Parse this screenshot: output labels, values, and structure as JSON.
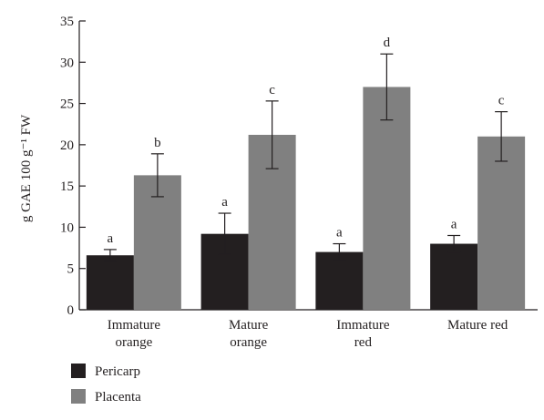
{
  "chart_data": {
    "type": "bar",
    "categories": [
      [
        "Immature",
        "orange"
      ],
      [
        "Mature",
        "orange"
      ],
      [
        "Immature",
        "red"
      ],
      [
        "Mature red"
      ]
    ],
    "series": [
      {
        "name": "Pericarp",
        "color": "#231f20",
        "values": [
          6.6,
          9.2,
          7.0,
          8.0
        ],
        "errors": [
          0.7,
          2.5,
          1.0,
          1.0
        ],
        "labels": [
          "a",
          "a",
          "a",
          "a"
        ]
      },
      {
        "name": "Placenta",
        "color": "#808080",
        "values": [
          16.3,
          21.2,
          27.0,
          21.0
        ],
        "errors": [
          2.6,
          4.1,
          4.0,
          3.0
        ],
        "labels": [
          "b",
          "c",
          "d",
          "c"
        ]
      }
    ],
    "ylabel": "g GAE 100 g⁻¹ FW",
    "ylim": [
      0,
      35
    ],
    "yticks": [
      0,
      5,
      10,
      15,
      20,
      25,
      30,
      35
    ],
    "grid": false,
    "legend_position": "bottom-left"
  }
}
